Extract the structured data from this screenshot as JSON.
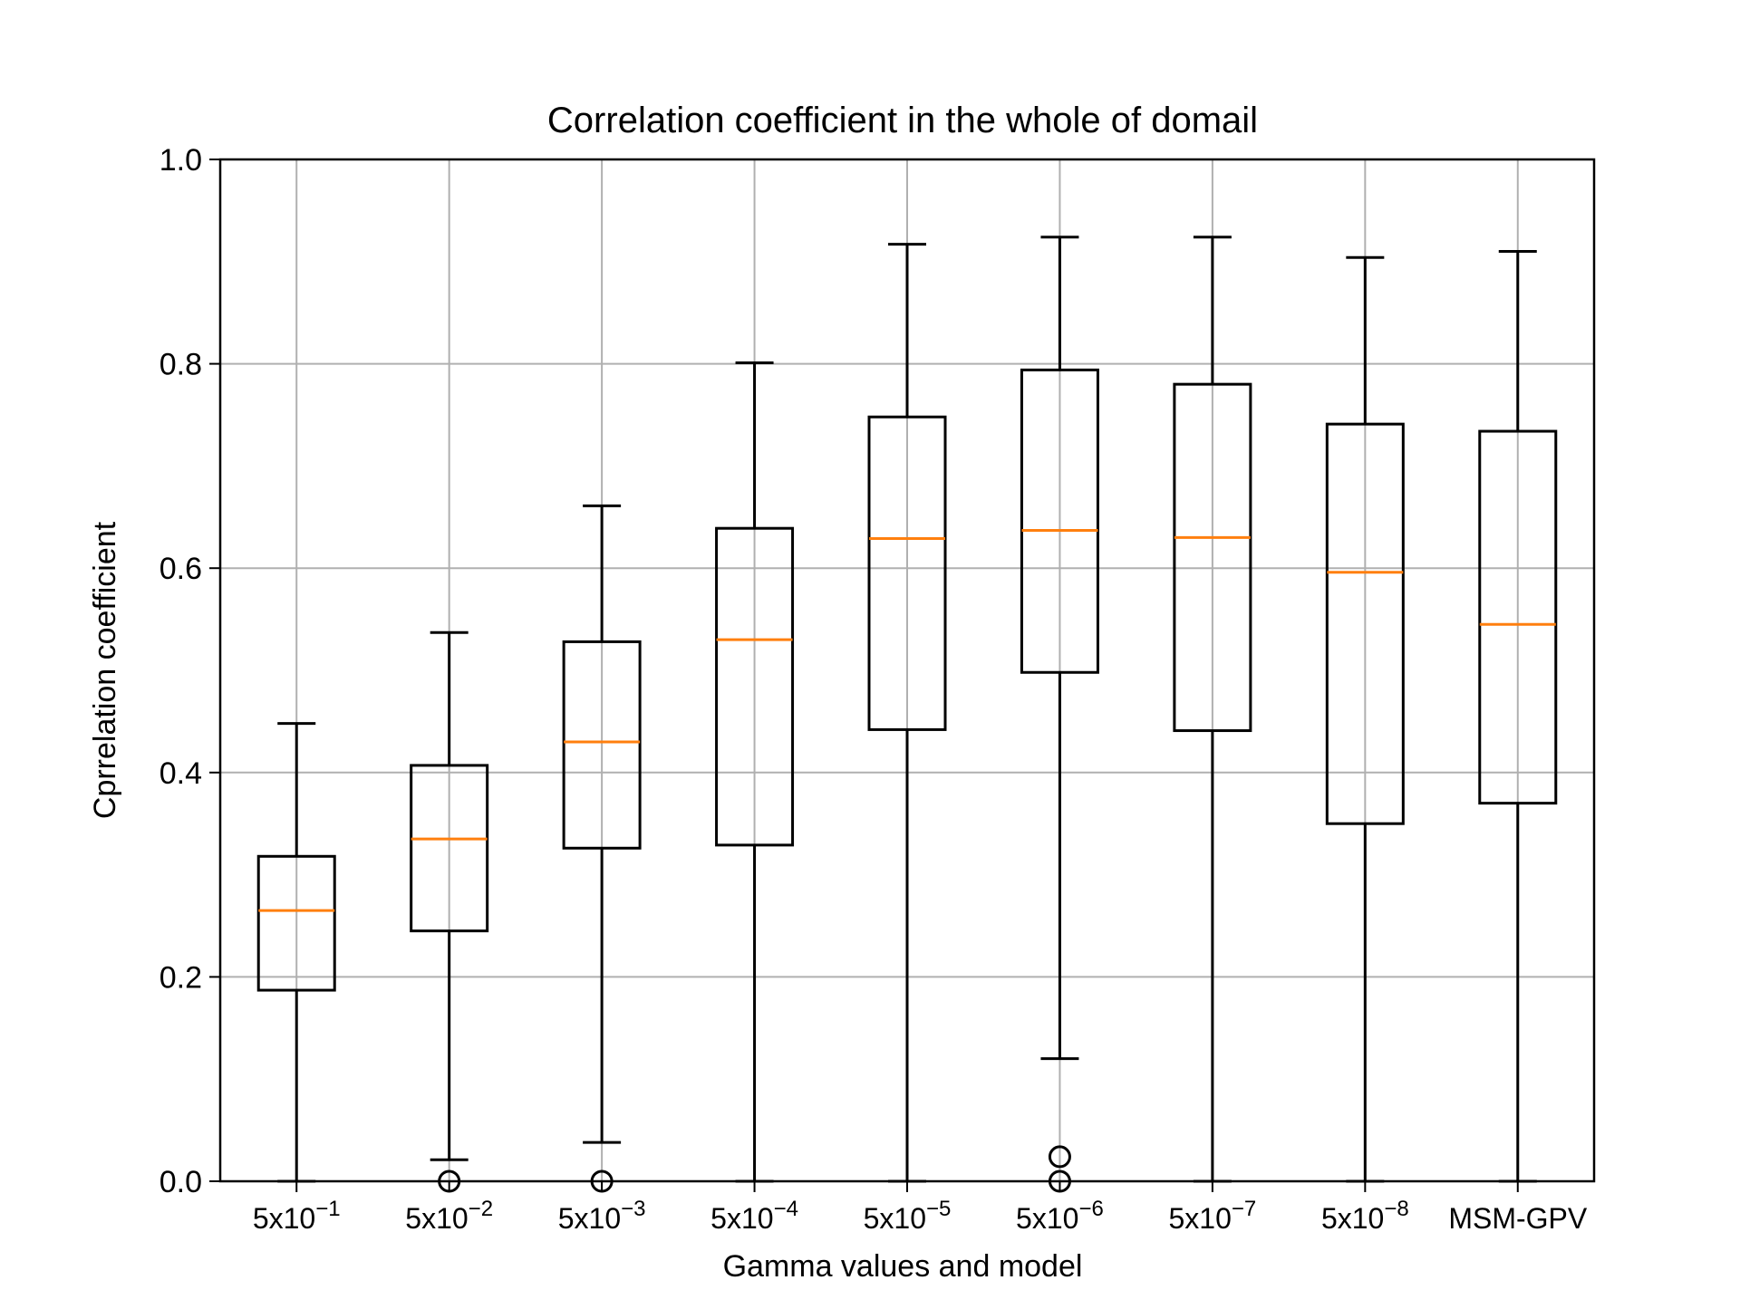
{
  "chart_data": {
    "type": "boxplot",
    "title": "Correlation coefficient in the whole of domail",
    "xlabel": "Gamma values and model",
    "ylabel": "Cprrelation coefficient",
    "ylim": [
      0.0,
      1.0
    ],
    "yticks": [
      0.0,
      0.2,
      0.4,
      0.6,
      0.8,
      1.0
    ],
    "ytick_labels": [
      "0.0",
      "0.2",
      "0.4",
      "0.6",
      "0.8",
      "1.0"
    ],
    "grid": true,
    "categories": [
      {
        "base": "5x10",
        "exp": "−1"
      },
      {
        "base": "5x10",
        "exp": "−2"
      },
      {
        "base": "5x10",
        "exp": "−3"
      },
      {
        "base": "5x10",
        "exp": "−4"
      },
      {
        "base": "5x10",
        "exp": "−5"
      },
      {
        "base": "5x10",
        "exp": "−6"
      },
      {
        "base": "5x10",
        "exp": "−7"
      },
      {
        "base": "5x10",
        "exp": "−8"
      },
      {
        "base": "MSM-GPV",
        "exp": ""
      }
    ],
    "boxes": [
      {
        "whisker_low": 0.0,
        "q1": 0.187,
        "median": 0.265,
        "q3": 0.318,
        "whisker_high": 0.448,
        "outliers": []
      },
      {
        "whisker_low": 0.021,
        "q1": 0.245,
        "median": 0.335,
        "q3": 0.407,
        "whisker_high": 0.537,
        "outliers": [
          0.0
        ]
      },
      {
        "whisker_low": 0.038,
        "q1": 0.326,
        "median": 0.43,
        "q3": 0.528,
        "whisker_high": 0.661,
        "outliers": [
          0.0
        ]
      },
      {
        "whisker_low": 0.0,
        "q1": 0.329,
        "median": 0.53,
        "q3": 0.639,
        "whisker_high": 0.801,
        "outliers": []
      },
      {
        "whisker_low": 0.0,
        "q1": 0.442,
        "median": 0.629,
        "q3": 0.748,
        "whisker_high": 0.917,
        "outliers": []
      },
      {
        "whisker_low": 0.12,
        "q1": 0.498,
        "median": 0.637,
        "q3": 0.794,
        "whisker_high": 0.924,
        "outliers": [
          0.024,
          0.0
        ]
      },
      {
        "whisker_low": 0.0,
        "q1": 0.441,
        "median": 0.63,
        "q3": 0.78,
        "whisker_high": 0.924,
        "outliers": []
      },
      {
        "whisker_low": 0.0,
        "q1": 0.35,
        "median": 0.596,
        "q3": 0.741,
        "whisker_high": 0.904,
        "outliers": []
      },
      {
        "whisker_low": 0.0,
        "q1": 0.37,
        "median": 0.545,
        "q3": 0.734,
        "whisker_high": 0.91,
        "outliers": []
      }
    ],
    "colors": {
      "box": "#000000",
      "median": "#ff7f0e",
      "grid": "#b0b0b0"
    }
  }
}
